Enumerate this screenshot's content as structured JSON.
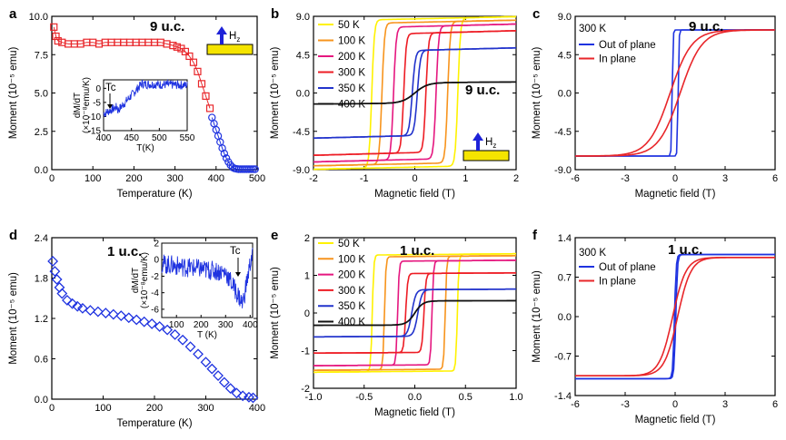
{
  "colors": {
    "red": "#e8262a",
    "blue": "#1f33e0",
    "yellow": "#fff200",
    "orange": "#f7941d",
    "magenta": "#e5177f",
    "darkred": "#ed1c24",
    "darkblue": "#2233cc",
    "black": "#111111",
    "substrate": "#f5e400",
    "arrow": "#1e22d8"
  },
  "chart_data": [
    {
      "panel_label": "a",
      "type": "scatter",
      "title": "9 u.c.",
      "xlabel": "Temperature (K)",
      "ylabel": "Moment (10⁻⁵ emu)",
      "xlim": [
        0,
        500
      ],
      "ylim": [
        0,
        10
      ],
      "x_ticks": [
        "0",
        "100",
        "200",
        "300",
        "400",
        "500"
      ],
      "y_ticks": [
        "0.0",
        "2.5",
        "5.0",
        "7.5",
        "10.0"
      ],
      "icon_label": "Hz",
      "series": [
        {
          "name": "red squares",
          "color": "#e8262a",
          "marker": "square",
          "x": [
            5,
            10,
            15,
            25,
            40,
            55,
            70,
            85,
            100,
            115,
            130,
            145,
            160,
            175,
            190,
            205,
            220,
            235,
            250,
            265,
            280,
            295,
            305,
            315,
            325,
            335,
            345,
            355,
            365,
            375,
            385
          ],
          "y": [
            9.3,
            8.7,
            8.4,
            8.3,
            8.2,
            8.2,
            8.2,
            8.3,
            8.3,
            8.2,
            8.3,
            8.3,
            8.3,
            8.3,
            8.3,
            8.3,
            8.3,
            8.3,
            8.3,
            8.3,
            8.2,
            8.1,
            8.0,
            7.9,
            7.7,
            7.4,
            7.0,
            6.4,
            5.6,
            4.8,
            4.0
          ]
        },
        {
          "name": "blue circles",
          "color": "#1f33e0",
          "marker": "circle",
          "x": [
            390,
            395,
            400,
            405,
            410,
            415,
            420,
            425,
            430,
            435,
            440,
            445,
            450,
            455,
            460,
            465,
            470,
            475,
            480,
            485,
            490,
            495
          ],
          "y": [
            3.4,
            3.0,
            2.6,
            2.2,
            1.8,
            1.4,
            1.05,
            0.75,
            0.5,
            0.3,
            0.15,
            0.08,
            0.05,
            0.03,
            0.03,
            0.03,
            0.03,
            0.03,
            0.03,
            0.03,
            0.03,
            0.03
          ]
        }
      ],
      "inset": {
        "xlabel": "T(K)",
        "ylabel_line1": "dM/dT",
        "ylabel_line2": "(×10⁻⁸emu/K)",
        "xlim": [
          400,
          550
        ],
        "ylim": [
          -15,
          3
        ],
        "x_ticks": [
          "400",
          "450",
          "500",
          "550"
        ],
        "y_ticks": [
          "0",
          "-5",
          "-10",
          "-15"
        ],
        "annotation": "Tc"
      }
    },
    {
      "panel_label": "b",
      "type": "line",
      "title": "9 u.c.",
      "xlabel": "Magnetic field (T)",
      "ylabel": "Moment (10⁻⁵ emu)",
      "xlim": [
        -2,
        2
      ],
      "ylim": [
        -9,
        9
      ],
      "x_ticks": [
        "-2",
        "-1",
        "0",
        "1",
        "2"
      ],
      "y_ticks": [
        "9.0",
        "4.5",
        "0.0",
        "-4.5",
        "-9.0"
      ],
      "icon_label": "Hz",
      "series": [
        {
          "name": "50 K",
          "color": "#fff200",
          "Hc": 0.85,
          "Ms": 8.7,
          "w": 0.05,
          "slope": 0.2
        },
        {
          "name": "100 K",
          "color": "#f7941d",
          "Hc": 0.65,
          "Ms": 8.3,
          "w": 0.05,
          "slope": 0.2
        },
        {
          "name": "200 K",
          "color": "#e5177f",
          "Hc": 0.42,
          "Ms": 7.8,
          "w": 0.05,
          "slope": 0.25
        },
        {
          "name": "300 K",
          "color": "#ed1c24",
          "Hc": 0.22,
          "Ms": 7.0,
          "w": 0.05,
          "slope": 0.3
        },
        {
          "name": "350 K",
          "color": "#2233cc",
          "Hc": 0.05,
          "Ms": 5.0,
          "w": 0.06,
          "slope": 0.4
        },
        {
          "name": "400 K",
          "color": "#111111",
          "Hc": 0.0,
          "Ms": 1.2,
          "w": 0.25,
          "slope": 0.55
        }
      ]
    },
    {
      "panel_label": "c",
      "type": "line",
      "title": "9 u.c.",
      "temp_label": "300  K",
      "xlabel": "Magnetic field (T)",
      "ylabel": "Moment (10⁻⁵ emu)",
      "xlim": [
        -6,
        6
      ],
      "ylim": [
        -9,
        9
      ],
      "x_ticks": [
        "-6",
        "-3",
        "0",
        "3",
        "6"
      ],
      "y_ticks": [
        "9.0",
        "4.5",
        "0.0",
        "-4.5",
        "-9.0"
      ],
      "series": [
        {
          "name": "Out of plane",
          "color": "#1f33e0",
          "Hc": 0.18,
          "Ms": 7.4,
          "w": 0.05,
          "slope": 0.01
        },
        {
          "name": "In plane",
          "color": "#e8262a",
          "Hc": 0.3,
          "Ms": 7.4,
          "w": 1.3,
          "slope": 0
        }
      ]
    },
    {
      "panel_label": "d",
      "type": "scatter",
      "title": "1 u.c.",
      "xlabel": "Temperature (K)",
      "ylabel": "Moment (10⁻⁵ emu)",
      "xlim": [
        0,
        400
      ],
      "ylim": [
        0,
        2.4
      ],
      "x_ticks": [
        "0",
        "100",
        "200",
        "300",
        "400"
      ],
      "y_ticks": [
        "0.0",
        "0.6",
        "1.2",
        "1.8",
        "2.4"
      ],
      "series": [
        {
          "name": "blue diamonds",
          "color": "#1f33e0",
          "marker": "diamond",
          "x": [
            2,
            6,
            10,
            15,
            20,
            30,
            40,
            50,
            60,
            75,
            90,
            105,
            120,
            135,
            150,
            165,
            180,
            195,
            210,
            225,
            240,
            255,
            270,
            285,
            300,
            312,
            324,
            336,
            348,
            360,
            372,
            384,
            392
          ],
          "y": [
            2.05,
            1.9,
            1.78,
            1.66,
            1.57,
            1.47,
            1.42,
            1.38,
            1.35,
            1.32,
            1.3,
            1.28,
            1.26,
            1.24,
            1.21,
            1.18,
            1.15,
            1.12,
            1.08,
            1.03,
            0.96,
            0.88,
            0.78,
            0.67,
            0.55,
            0.45,
            0.35,
            0.25,
            0.16,
            0.09,
            0.05,
            0.03,
            0.02
          ]
        }
      ],
      "inset": {
        "xlabel": "T (K)",
        "ylabel_line1": "dM/dT",
        "ylabel_line2": "(×10⁻⁸emu/K)",
        "xlim": [
          40,
          410
        ],
        "ylim": [
          -7,
          2
        ],
        "x_ticks": [
          "100",
          "200",
          "300",
          "400"
        ],
        "y_ticks": [
          "2",
          "0",
          "-2",
          "-4",
          "-6"
        ],
        "annotation": "Tc"
      }
    },
    {
      "panel_label": "e",
      "type": "line",
      "title": "1 u.c.",
      "xlabel": "Magnetic field (T)",
      "ylabel": "Moment (10⁻⁵ emu)",
      "xlim": [
        -1,
        1
      ],
      "ylim": [
        -2,
        2
      ],
      "x_ticks": [
        "-1.0",
        "-0.5",
        "0.0",
        "0.5",
        "1.0"
      ],
      "y_ticks": [
        "2",
        "1",
        "0",
        "-1",
        "-2"
      ],
      "series": [
        {
          "name": "50 K",
          "color": "#fff200",
          "Hc": 0.42,
          "Ms": 1.55,
          "w": 0.015,
          "slope": 0.1
        },
        {
          "name": "100 K",
          "color": "#f7941d",
          "Hc": 0.3,
          "Ms": 1.5,
          "w": 0.015,
          "slope": 0.1
        },
        {
          "name": "200 K",
          "color": "#e5177f",
          "Hc": 0.17,
          "Ms": 1.38,
          "w": 0.015,
          "slope": 0.1
        },
        {
          "name": "300 K",
          "color": "#ed1c24",
          "Hc": 0.09,
          "Ms": 1.05,
          "w": 0.02,
          "slope": 0.1
        },
        {
          "name": "350 K",
          "color": "#2233cc",
          "Hc": 0.03,
          "Ms": 0.62,
          "w": 0.04,
          "slope": 0.15
        },
        {
          "name": "400 K",
          "color": "#111111",
          "Hc": 0.0,
          "Ms": 0.32,
          "w": 0.08,
          "slope": 0.15
        }
      ]
    },
    {
      "panel_label": "f",
      "type": "line",
      "title": "1 u.c.",
      "temp_label": "300  K",
      "xlabel": "Magnetic field (T)",
      "ylabel": "Moment (10⁻⁵ emu)",
      "xlim": [
        -6,
        6
      ],
      "ylim": [
        -1.4,
        1.4
      ],
      "x_ticks": [
        "-6",
        "-3",
        "0",
        "3",
        "6"
      ],
      "y_ticks": [
        "1.4",
        "0.7",
        "0.0",
        "-0.7",
        "-1.4"
      ],
      "series": [
        {
          "name": "Out of plane",
          "color": "#1f33e0",
          "Hc": 0.04,
          "Ms": 1.1,
          "w": 0.1,
          "slope": 0
        },
        {
          "name": "In plane",
          "color": "#e8262a",
          "Hc": 0.15,
          "Ms": 1.05,
          "w": 0.8,
          "slope": 0
        }
      ]
    }
  ]
}
